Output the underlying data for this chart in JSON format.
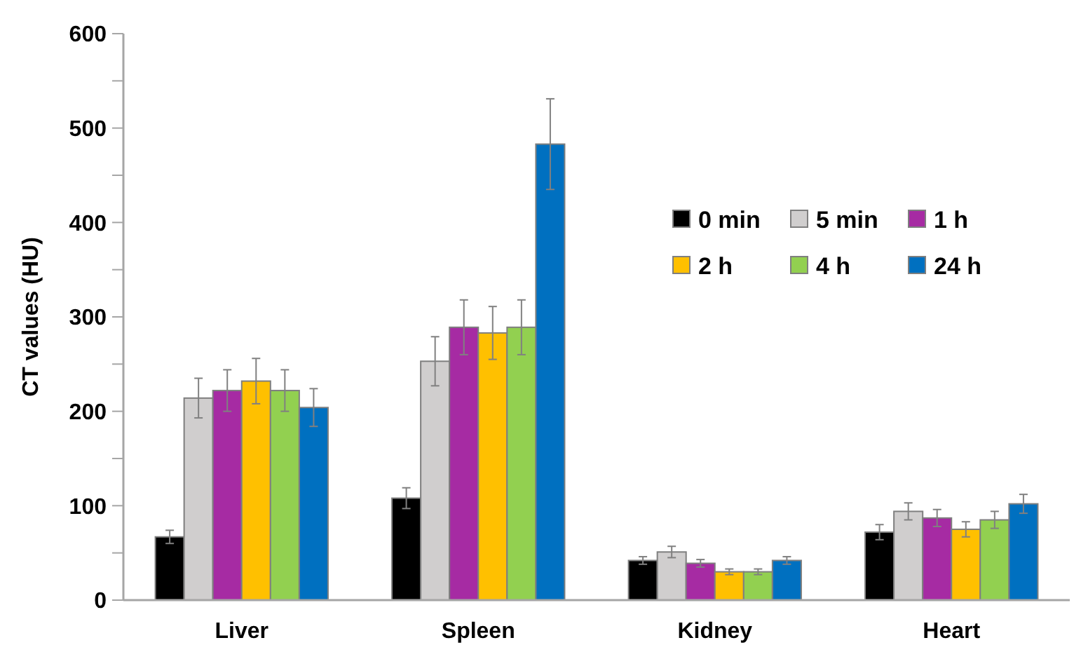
{
  "chart_data": {
    "type": "bar",
    "ylabel": "CT values (HU)",
    "categories": [
      "Liver",
      "Spleen",
      "Kidney",
      "Heart"
    ],
    "ylim": [
      0,
      600
    ],
    "yticks": [
      0,
      {
        "value": 50,
        "label": null
      },
      100,
      {
        "value": 150,
        "label": null
      },
      200,
      {
        "value": 250,
        "label": null
      },
      300,
      {
        "value": 350,
        "label": null
      },
      400,
      {
        "value": 450,
        "label": null
      },
      500,
      {
        "value": 550,
        "label": null
      },
      600
    ],
    "grid": false,
    "legend": "top right",
    "series": [
      {
        "name": "0 min",
        "color": "#000000",
        "values": [
          67,
          108,
          42,
          72
        ],
        "errors": [
          7,
          11,
          4,
          8
        ]
      },
      {
        "name": "5 min",
        "color": "#d0cece",
        "values": [
          214,
          253,
          51,
          94
        ],
        "errors": [
          21,
          26,
          6,
          9
        ]
      },
      {
        "name": "1 h",
        "color": "#a62ba3",
        "values": [
          222,
          289,
          39,
          87
        ],
        "errors": [
          22,
          29,
          4,
          9
        ]
      },
      {
        "name": "2 h",
        "color": "#ffc000",
        "values": [
          232,
          283,
          30,
          75
        ],
        "errors": [
          24,
          28,
          3,
          8
        ]
      },
      {
        "name": "4 h",
        "color": "#92d050",
        "values": [
          222,
          289,
          30,
          85
        ],
        "errors": [
          22,
          29,
          3,
          9
        ]
      },
      {
        "name": "24 h",
        "color": "#0070c0",
        "values": [
          204,
          483,
          42,
          102
        ],
        "errors": [
          20,
          48,
          4,
          10
        ]
      }
    ]
  }
}
